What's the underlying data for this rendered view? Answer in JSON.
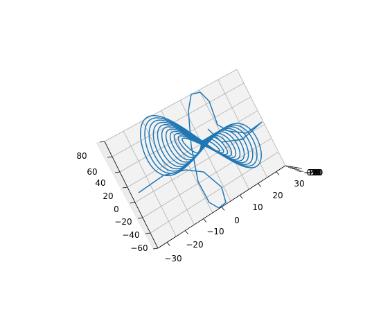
{
  "chart_data": {
    "type": "line3d",
    "title": "",
    "grid": true,
    "legend": "none",
    "colors": {
      "line": "#1f77b4",
      "pane": "#f2f2f2",
      "grid": "#b0b0b0"
    },
    "x_axis": {
      "label": "",
      "ticks": [
        "−30",
        "−20",
        "−10",
        "0",
        "10",
        "20",
        "30"
      ]
    },
    "y_axis": {
      "label": "",
      "ticks": [
        "−60",
        "−40",
        "−20",
        "0",
        "20",
        "40",
        "60",
        "80"
      ]
    },
    "z_axis": {
      "label": "",
      "ticks": [
        "−30",
        "−20",
        "−10",
        "0",
        "10",
        "20",
        "30"
      ],
      "ticks_overlapping": true
    },
    "series": [
      {
        "curve": "self-crossing figure-eight wireframe of nested closed loops",
        "loops": 11
      }
    ]
  }
}
